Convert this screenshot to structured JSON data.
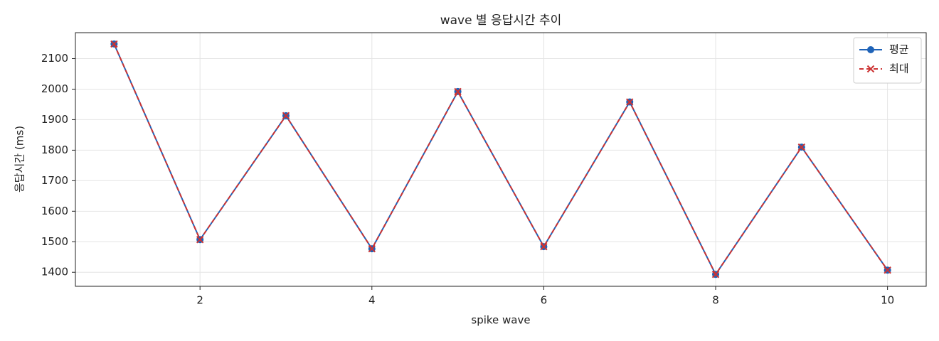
{
  "chart_data": {
    "type": "line",
    "title": "wave 별 응답시간 추이",
    "x_label": "spike wave",
    "y_label": "응답시간 (ms)",
    "x": [
      1,
      2,
      3,
      4,
      5,
      6,
      7,
      8,
      9,
      10
    ],
    "series": [
      {
        "name": "평균",
        "color": "#1f63b8",
        "marker": "circle",
        "dash": false,
        "values": [
          2148,
          1507,
          1913,
          1477,
          1992,
          1484,
          1958,
          1393,
          1810,
          1407
        ]
      },
      {
        "name": "최대",
        "color": "#cc3333",
        "marker": "x",
        "dash": true,
        "values": [
          2148,
          1507,
          1913,
          1477,
          1992,
          1484,
          1958,
          1393,
          1810,
          1407
        ]
      }
    ],
    "xlim": [
      0.55,
      10.45
    ],
    "ylim": [
      1354,
      2185
    ],
    "xticks": [
      2,
      4,
      6,
      8,
      10
    ],
    "yticks": [
      1400,
      1500,
      1600,
      1700,
      1800,
      1900,
      2000,
      2100
    ],
    "grid": true,
    "legend": "upper right"
  }
}
